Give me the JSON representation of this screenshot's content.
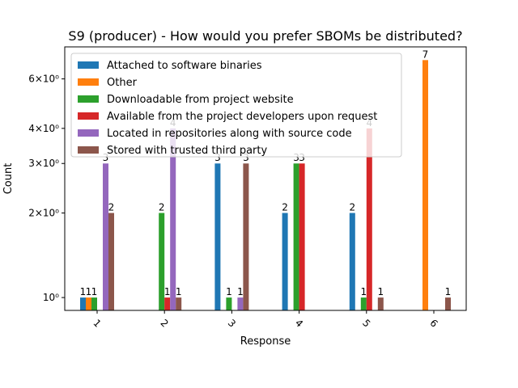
{
  "chart_data": {
    "type": "bar",
    "title": "S9 (producer) - How would you prefer SBOMs be distributed?",
    "xlabel": "Response",
    "ylabel": "Count",
    "yscale": "log",
    "ylim": [
      0.9,
      7.8
    ],
    "categories": [
      "1",
      "2",
      "3",
      "4",
      "5",
      "6"
    ],
    "series": [
      {
        "name": "Attached to software binaries",
        "color": "#1f77b4",
        "values": [
          1,
          null,
          3,
          2,
          2,
          null
        ]
      },
      {
        "name": "Other",
        "color": "#ff7f0e",
        "values": [
          1,
          null,
          null,
          null,
          null,
          7
        ]
      },
      {
        "name": "Downloadable from project website",
        "color": "#2ca02c",
        "values": [
          1,
          2,
          1,
          3,
          1,
          null
        ]
      },
      {
        "name": "Available from the project developers upon request",
        "color": "#d62728",
        "values": [
          null,
          1,
          null,
          3,
          4,
          null
        ]
      },
      {
        "name": "Located in repositories along with source code",
        "color": "#9467bd",
        "values": [
          3,
          4,
          1,
          null,
          null,
          null
        ]
      },
      {
        "name": "Stored with trusted third party",
        "color": "#8c564b",
        "values": [
          2,
          1,
          3,
          null,
          1,
          1
        ]
      }
    ],
    "yticks": [
      {
        "value": 1,
        "label": "10⁰"
      },
      {
        "value": 2,
        "label": "2×10⁰"
      },
      {
        "value": 3,
        "label": "3×10⁰"
      },
      {
        "value": 4,
        "label": "4×10⁰"
      },
      {
        "value": 6,
        "label": "6×10⁰"
      }
    ],
    "grid": false,
    "legend_position": "top-left"
  }
}
